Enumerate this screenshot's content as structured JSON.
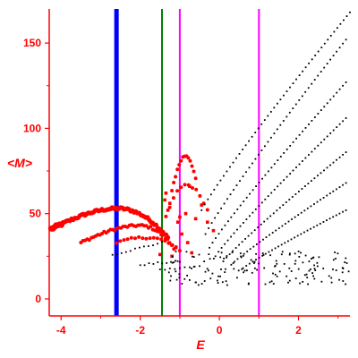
{
  "chart_data": {
    "type": "scatter",
    "xlabel": "E",
    "ylabel": "<M>",
    "xlim": [
      -4.3,
      3.3
    ],
    "ylim": [
      -10,
      170
    ],
    "x_ticks": [
      -4,
      -2,
      0,
      2
    ],
    "x_tick_labels": [
      "-4",
      "-2",
      "0",
      "2"
    ],
    "y_ticks": [
      0,
      50,
      100,
      150
    ],
    "y_tick_labels": [
      "0",
      "50",
      "100",
      "150"
    ],
    "grid": false,
    "colors": {
      "axis": "#ff0000",
      "marker_line": "#0000ff",
      "green_line": "#008000",
      "magenta_line": "#ff00ff",
      "red_points": "#ff0000",
      "black_points": "#000000"
    },
    "vertical_lines": [
      {
        "x": -2.6,
        "color": "#0000ff",
        "weight": "thick"
      },
      {
        "x": -1.45,
        "color": "#008000",
        "weight": "thin"
      },
      {
        "x": -1.0,
        "color": "#ff00ff",
        "weight": "thin"
      },
      {
        "x": 1.0,
        "color": "#ff00ff",
        "weight": "thin"
      }
    ],
    "red_bands": [
      {
        "start": [
          -4.25,
          41
        ],
        "peak": [
          -2.55,
          53
        ],
        "end": [
          -1.3,
          36
        ],
        "points": 70
      },
      {
        "start": [
          -3.5,
          33
        ],
        "peak": [
          -2.0,
          43
        ],
        "end": [
          -1.15,
          30
        ],
        "points": 45
      },
      {
        "start": [
          -2.6,
          33
        ],
        "peak": [
          -1.8,
          36
        ],
        "end": [
          -1.0,
          28
        ],
        "points": 18
      },
      {
        "start": [
          -1.2,
          64
        ],
        "peak": [
          -0.85,
          84
        ],
        "end": [
          -0.6,
          70
        ],
        "points": 14
      },
      {
        "start": [
          -1.35,
          48
        ],
        "peak": [
          -0.85,
          67
        ],
        "end": [
          -0.3,
          52
        ],
        "points": 12
      }
    ],
    "red_scatter": [
      [
        -1.35,
        62
      ],
      [
        -1.38,
        58
      ],
      [
        -1.3,
        52
      ],
      [
        -1.25,
        56
      ],
      [
        -1.0,
        48
      ],
      [
        -1.05,
        45
      ],
      [
        -0.85,
        50
      ],
      [
        -0.95,
        38
      ],
      [
        -1.1,
        30
      ],
      [
        -1.2,
        25
      ],
      [
        -0.6,
        47
      ],
      [
        -0.45,
        55
      ],
      [
        -0.3,
        45
      ],
      [
        -0.15,
        40
      ],
      [
        -0.8,
        33
      ],
      [
        -0.7,
        27
      ],
      [
        -1.5,
        26
      ],
      [
        -0.75,
        66
      ]
    ],
    "black_branches": [
      {
        "start": [
          -0.45,
          52
        ],
        "end": [
          3.3,
          168
        ],
        "points": 48
      },
      {
        "start": [
          -0.35,
          38
        ],
        "end": [
          3.2,
          152
        ],
        "points": 46
      },
      {
        "start": [
          -0.25,
          30
        ],
        "end": [
          3.2,
          127
        ],
        "points": 45
      },
      {
        "start": [
          -0.1,
          25
        ],
        "end": [
          3.2,
          106
        ],
        "points": 43
      },
      {
        "start": [
          0.1,
          22
        ],
        "end": [
          3.2,
          86
        ],
        "points": 40
      },
      {
        "start": [
          0.3,
          20
        ],
        "end": [
          3.2,
          68
        ],
        "points": 37
      },
      {
        "start": [
          0.6,
          18
        ],
        "end": [
          3.2,
          52
        ],
        "points": 33
      }
    ],
    "black_low_band": {
      "x_range": [
        -1.3,
        3.3
      ],
      "y_range": [
        8,
        28
      ],
      "points": 150
    },
    "black_left_trails": [
      {
        "start": [
          -2.7,
          26
        ],
        "end": [
          -1.45,
          33
        ],
        "points": 12
      },
      {
        "start": [
          -2.0,
          20
        ],
        "end": [
          -1.0,
          22
        ],
        "points": 10
      },
      {
        "start": [
          -1.5,
          17
        ],
        "end": [
          -0.5,
          19
        ],
        "points": 9
      }
    ]
  }
}
